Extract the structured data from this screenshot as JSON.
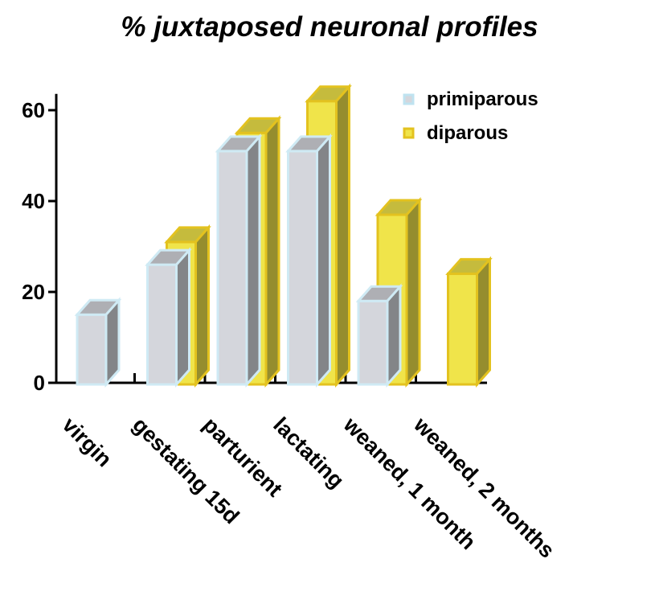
{
  "chart_data": {
    "type": "bar",
    "title": "% juxtaposed neuronal profiles",
    "xlabel": "",
    "ylabel": "",
    "categories": [
      "virgin",
      "gestating 15d",
      "parturient",
      "lactating",
      "weaned, 1 month",
      "weaned, 2 months"
    ],
    "series": [
      {
        "name": "primiparous",
        "values": [
          15,
          26,
          51,
          51,
          18,
          null
        ],
        "color": "#d4d6dc"
      },
      {
        "name": "diparous",
        "values": [
          null,
          31,
          55,
          62,
          37,
          24
        ],
        "color": "#f0e44a"
      }
    ],
    "yticks": [
      0,
      20,
      40,
      60
    ],
    "ylim": [
      0,
      65
    ],
    "grid": false,
    "style": "3d",
    "legend": {
      "position": "top-right"
    }
  }
}
